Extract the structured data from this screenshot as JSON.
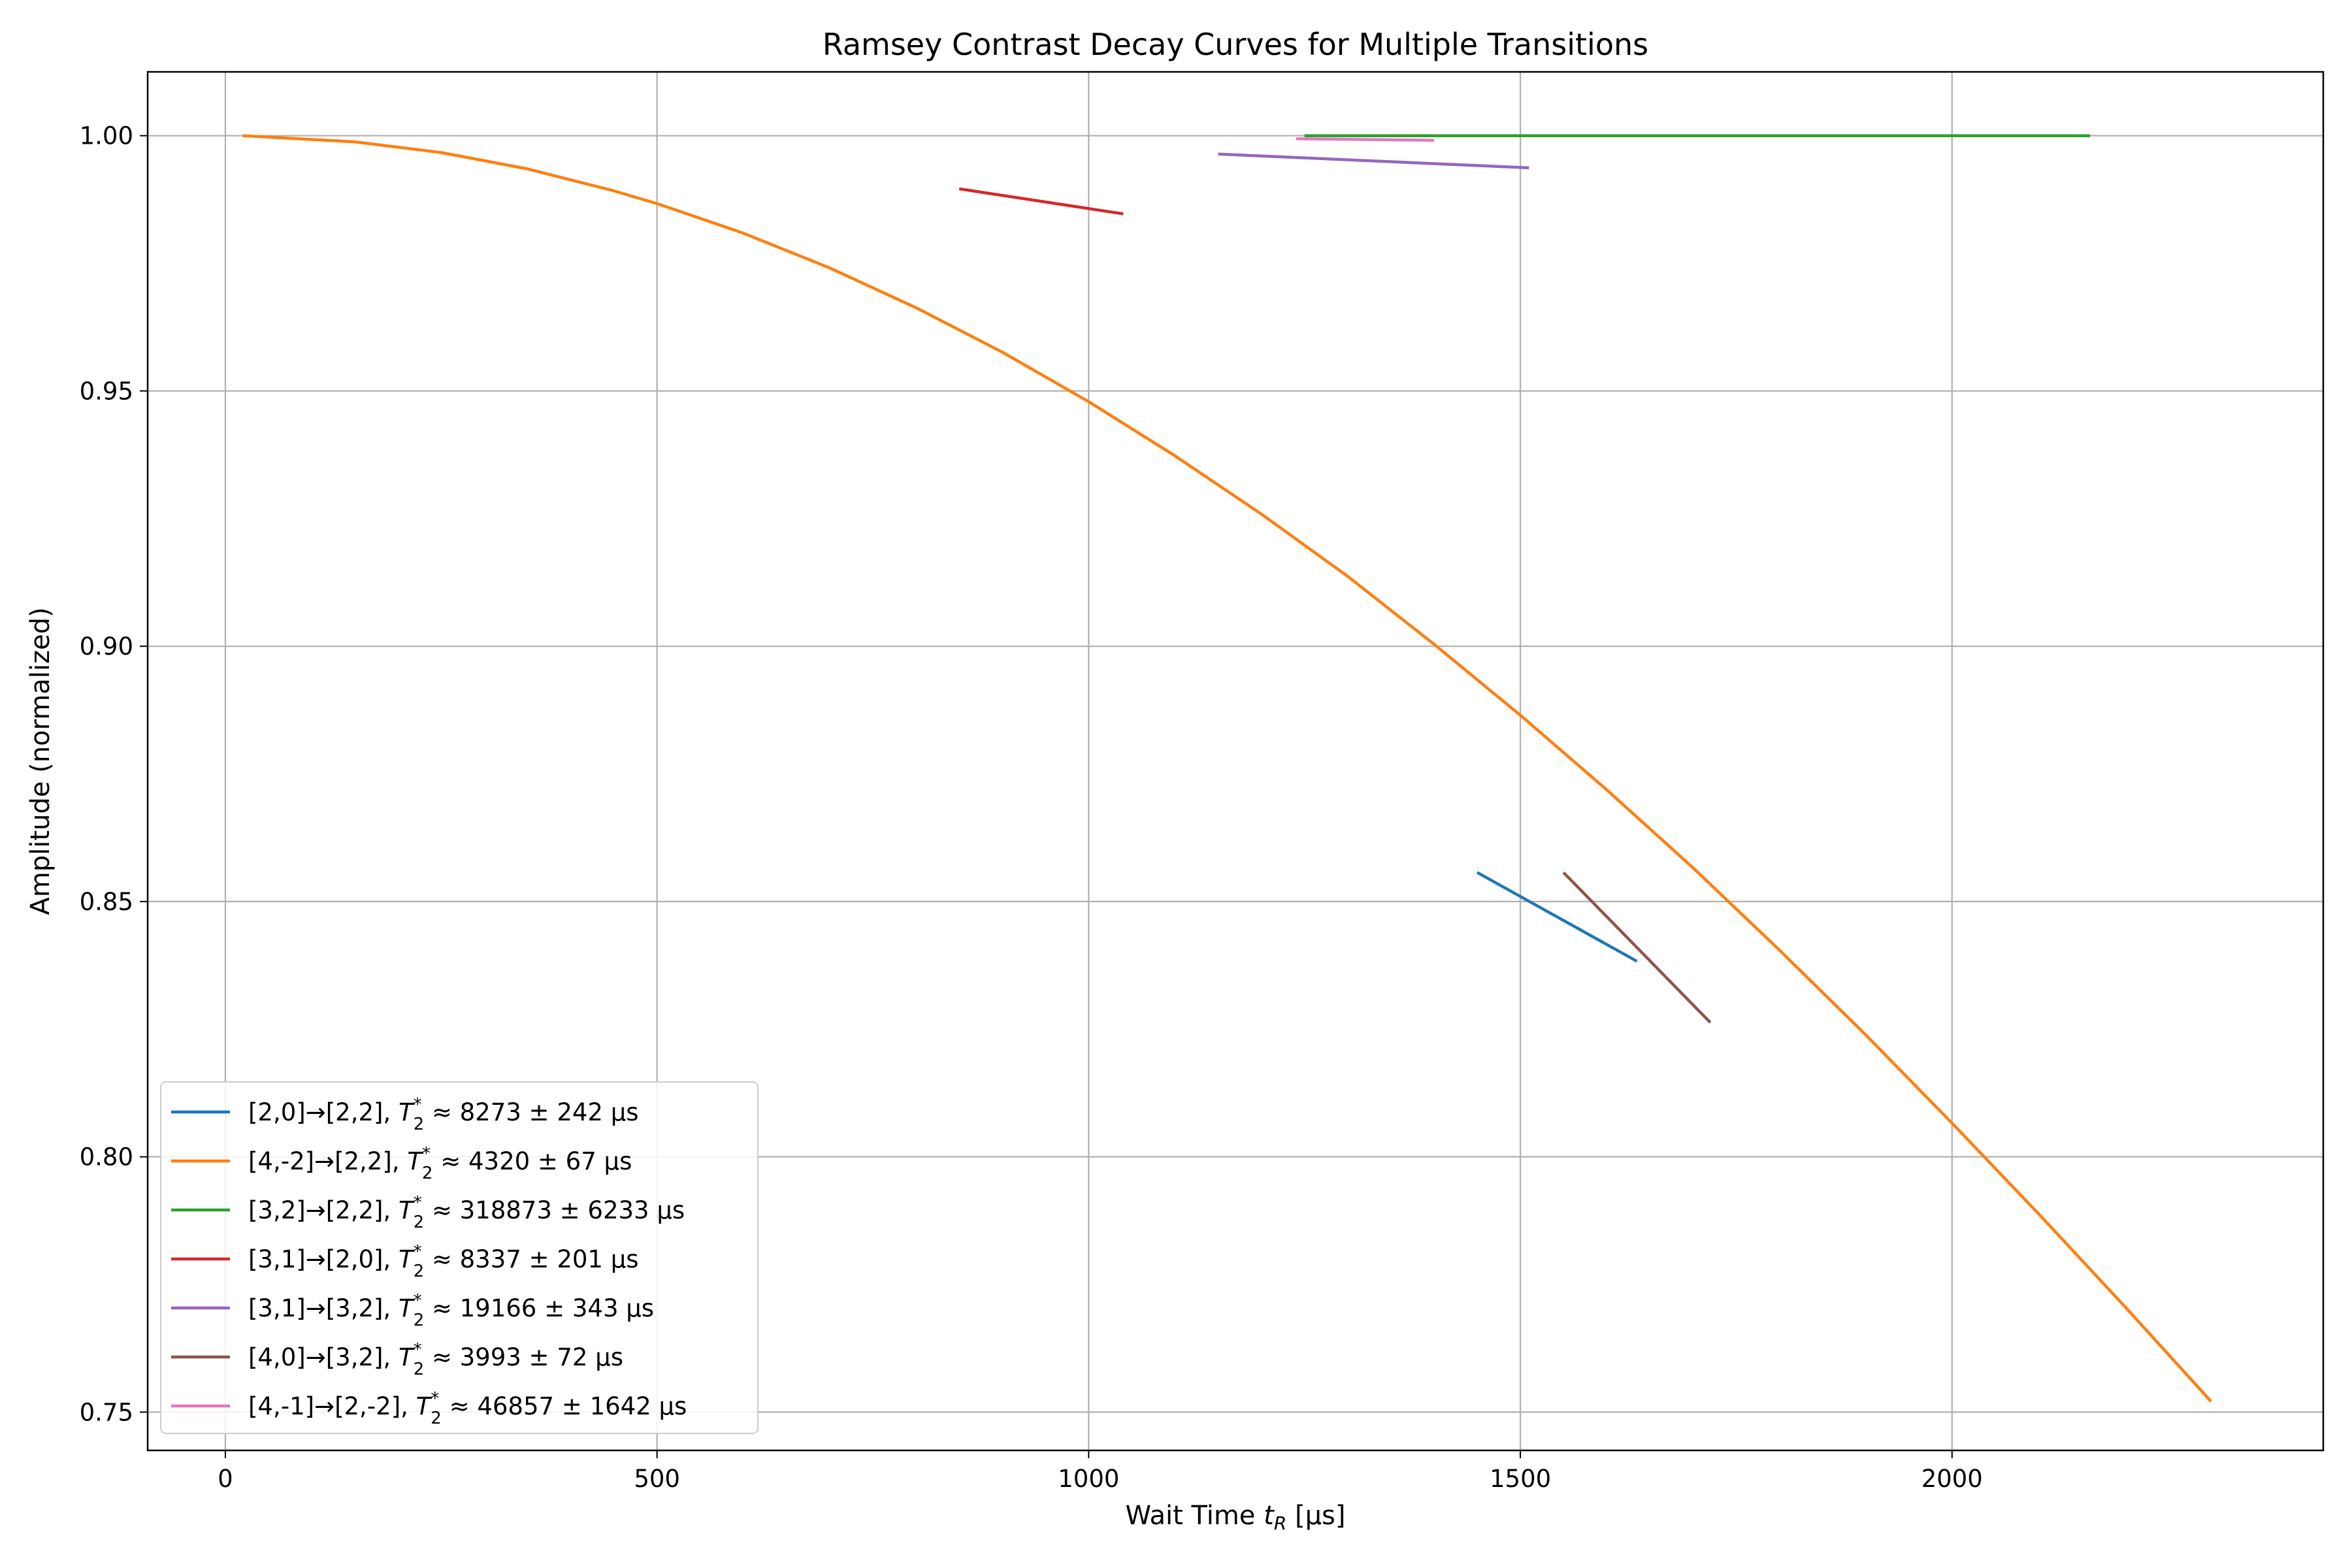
{
  "chart_data": {
    "type": "line",
    "title": "Ramsey Contrast Decay Curves for Multiple Transitions",
    "xlabel_prefix": "Wait Time ",
    "xlabel_symbol": "t",
    "xlabel_subscript": "R",
    "xlabel_suffix": " [µs]",
    "ylabel": "Amplitude (normalized)",
    "xlim": [
      -90,
      2430
    ],
    "ylim": [
      0.7425,
      1.0125
    ],
    "xticks": [
      0,
      500,
      1000,
      1500,
      2000
    ],
    "xtick_labels": [
      "0",
      "500",
      "1000",
      "1500",
      "2000"
    ],
    "yticks": [
      0.75,
      0.8,
      0.85,
      0.9,
      0.95,
      1.0
    ],
    "ytick_labels": [
      "0.75",
      "0.80",
      "0.85",
      "0.90",
      "0.95",
      "1.00"
    ],
    "grid": true,
    "legend_position": "lower-left",
    "series": [
      {
        "transition": "[2,0]→[2,2], ",
        "stat": " ≈ 8273 ± 242 µs",
        "color": "#1f77b4",
        "x": [
          1450,
          1635
        ],
        "y": [
          0.8557,
          0.8383
        ]
      },
      {
        "transition": "[4,-2]→[2,2], ",
        "stat": " ≈ 4320 ± 67 µs",
        "color": "#ff7f0e",
        "x": [
          20,
          150,
          250,
          350,
          450,
          500,
          600,
          700,
          800,
          900,
          1000,
          1100,
          1200,
          1300,
          1400,
          1500,
          1600,
          1700,
          1800,
          1900,
          2000,
          2100,
          2200,
          2300
        ],
        "y": [
          1.0,
          0.9988,
          0.9967,
          0.9935,
          0.9892,
          0.9867,
          0.9809,
          0.9741,
          0.9663,
          0.9576,
          0.9479,
          0.9373,
          0.9259,
          0.9137,
          0.9004,
          0.8865,
          0.8719,
          0.8566,
          0.8405,
          0.8239,
          0.8066,
          0.7889,
          0.7707,
          0.7521
        ]
      },
      {
        "transition": "[3,2]→[2,2], ",
        "stat": " ≈ 318873 ± 6233 µs",
        "color": "#2ca02c",
        "x": [
          1250,
          2160
        ],
        "y": [
          1.0,
          1.0
        ]
      },
      {
        "transition": "[3,1]→[2,0], ",
        "stat": " ≈ 8337 ± 201 µs",
        "color": "#d62728",
        "x": [
          850,
          1040
        ],
        "y": [
          0.9896,
          0.9847
        ]
      },
      {
        "transition": "[3,1]→[3,2], ",
        "stat": " ≈ 19166 ± 343 µs",
        "color": "#9467bd",
        "x": [
          1150,
          1510
        ],
        "y": [
          0.9964,
          0.9937
        ]
      },
      {
        "transition": "[4,0]→[3,2], ",
        "stat": " ≈ 3993 ± 72 µs",
        "color": "#8c564b",
        "x": [
          1550,
          1720
        ],
        "y": [
          0.8557,
          0.8263
        ]
      },
      {
        "transition": "[4,-1]→[2,-2], ",
        "stat": " ≈ 46857 ± 1642 µs",
        "color": "#e377c2",
        "x": [
          1240,
          1400
        ],
        "y": [
          0.9994,
          0.9991
        ]
      }
    ]
  }
}
